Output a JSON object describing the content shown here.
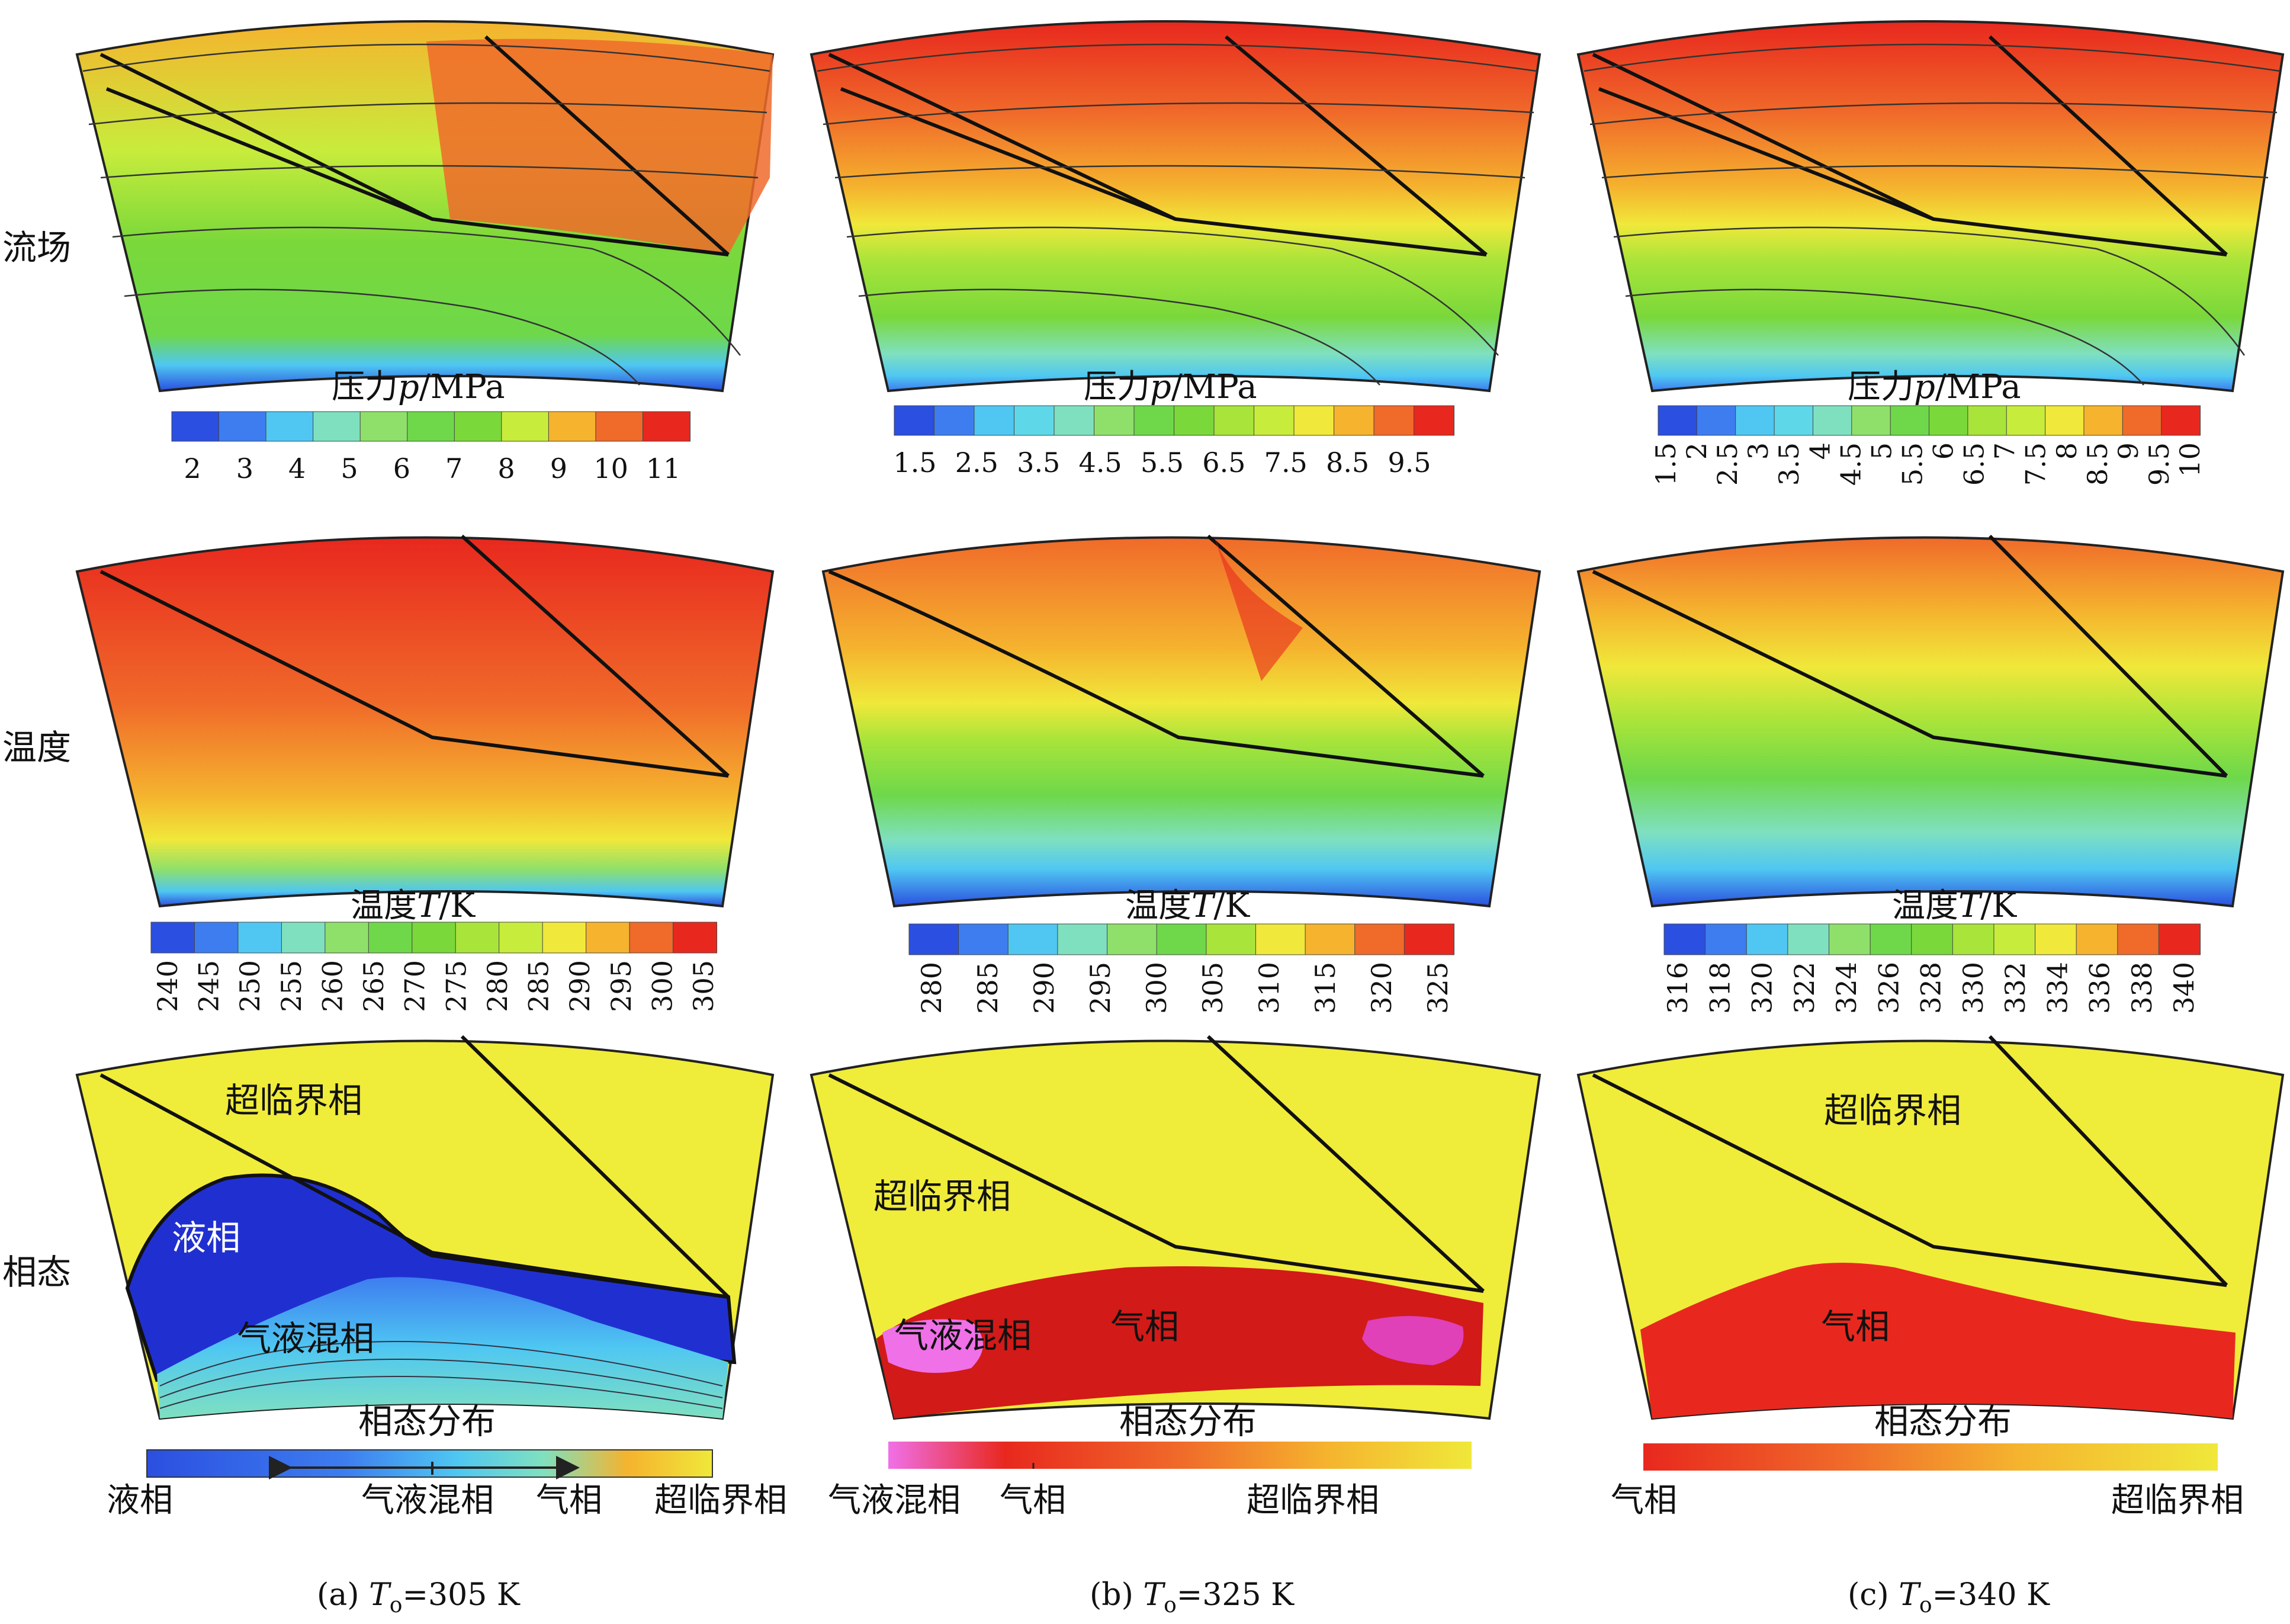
{
  "rows": [
    {
      "label": "流场"
    },
    {
      "label": "温度"
    },
    {
      "label": "相态"
    }
  ],
  "columns": [
    {
      "caption_prefix": "(a) ",
      "caption_var": "T",
      "caption_sub": "o",
      "caption_suffix": "=305 K",
      "pressure": {
        "title_prefix": "压力",
        "title_var": "p",
        "title_unit": "/MPa",
        "ticks": [
          "2",
          "3",
          "4",
          "5",
          "6",
          "7",
          "8",
          "9",
          "10",
          "11"
        ],
        "colors": [
          "#2b4fe0",
          "#3d7df0",
          "#4fc7f2",
          "#7fe0c0",
          "#8fe06a",
          "#6ed84a",
          "#7ad83a",
          "#c8ec3c",
          "#f5b32e",
          "#f06a2a",
          "#e8281e"
        ]
      },
      "temperature": {
        "title_prefix": "温度",
        "title_var": "T",
        "title_unit": "/K",
        "ticks": [
          "240",
          "245",
          "250",
          "255",
          "260",
          "265",
          "270",
          "275",
          "280",
          "285",
          "290",
          "295",
          "300",
          "305"
        ],
        "colors": [
          "#2b4fe0",
          "#3d7df0",
          "#4fc7f2",
          "#7fe0c0",
          "#8fe06a",
          "#6ed84a",
          "#7ad83a",
          "#a8e43a",
          "#c8ec3c",
          "#f0e83a",
          "#f5b32e",
          "#f06a2a",
          "#e8281e"
        ]
      },
      "phase": {
        "title": "相态分布",
        "regions": [
          "超临界相",
          "液相",
          "气液混相"
        ],
        "bar_labels": [
          "液相",
          "气液混相",
          "气相",
          "超临界相"
        ]
      }
    },
    {
      "caption_prefix": "(b) ",
      "caption_var": "T",
      "caption_sub": "o",
      "caption_suffix": "=325 K",
      "pressure": {
        "title_prefix": "压力",
        "title_var": "p",
        "title_unit": "/MPa",
        "ticks": [
          "1.5",
          "2.5",
          "3.5",
          "4.5",
          "5.5",
          "6.5",
          "7.5",
          "8.5",
          "9.5"
        ],
        "colors": [
          "#2b4fe0",
          "#3d7df0",
          "#4fc7f2",
          "#5ed8e8",
          "#7fe0c0",
          "#8fe06a",
          "#6ed84a",
          "#7ad83a",
          "#a8e43a",
          "#c8ec3c",
          "#f0e83a",
          "#f5b32e",
          "#f06a2a",
          "#e8281e"
        ]
      },
      "temperature": {
        "title_prefix": "温度",
        "title_var": "T",
        "title_unit": "/K",
        "ticks": [
          "280",
          "285",
          "290",
          "295",
          "300",
          "305",
          "310",
          "315",
          "320",
          "325"
        ],
        "colors": [
          "#2b4fe0",
          "#3d7df0",
          "#4fc7f2",
          "#7fe0c0",
          "#8fe06a",
          "#6ed84a",
          "#a8e43a",
          "#f0e83a",
          "#f5b32e",
          "#f06a2a",
          "#e8281e"
        ]
      },
      "phase": {
        "title": "相态分布",
        "regions": [
          "超临界相",
          "气液混相",
          "气相"
        ],
        "bar_labels": [
          "气液混相",
          "气相",
          "超临界相"
        ]
      }
    },
    {
      "caption_prefix": "(c) ",
      "caption_var": "T",
      "caption_sub": "o",
      "caption_suffix": "=340 K",
      "pressure": {
        "title_prefix": "压力",
        "title_var": "p",
        "title_unit": "/MPa",
        "ticks": [
          "1.5",
          "2",
          "2.5",
          "3",
          "3.5",
          "4",
          "4.5",
          "5",
          "5.5",
          "6",
          "6.5",
          "7",
          "7.5",
          "8",
          "8.5",
          "9",
          "9.5",
          "10"
        ],
        "colors": [
          "#2b4fe0",
          "#3d7df0",
          "#4fc7f2",
          "#5ed8e8",
          "#7fe0c0",
          "#8fe06a",
          "#6ed84a",
          "#7ad83a",
          "#a8e43a",
          "#c8ec3c",
          "#f0e83a",
          "#f5b32e",
          "#f06a2a",
          "#e8281e"
        ]
      },
      "temperature": {
        "title_prefix": "温度",
        "title_var": "T",
        "title_unit": "/K",
        "ticks": [
          "316",
          "318",
          "320",
          "322",
          "324",
          "326",
          "328",
          "330",
          "332",
          "334",
          "336",
          "338",
          "340"
        ],
        "colors": [
          "#2b4fe0",
          "#3d7df0",
          "#4fc7f2",
          "#7fe0c0",
          "#8fe06a",
          "#6ed84a",
          "#7ad83a",
          "#a8e43a",
          "#c8ec3c",
          "#f0e83a",
          "#f5b32e",
          "#f06a2a",
          "#e8281e"
        ]
      },
      "phase": {
        "title": "相态分布",
        "regions": [
          "超临界相",
          "气相"
        ],
        "bar_labels": [
          "气相",
          "超临界相"
        ]
      }
    }
  ]
}
